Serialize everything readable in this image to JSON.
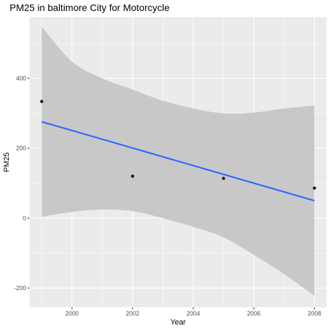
{
  "chart_data": {
    "type": "scatter",
    "title": "PM25 in baltimore City for Motorcycle",
    "xlabel": "Year",
    "ylabel": "PM25",
    "xlim": [
      1998.6,
      2008.4
    ],
    "ylim": [
      -255,
      575
    ],
    "x_ticks": [
      2000,
      2002,
      2004,
      2006,
      2008
    ],
    "y_ticks": [
      -200,
      0,
      200,
      400
    ],
    "grid": true,
    "legend": "none",
    "points": [
      {
        "x": 1999,
        "y": 334
      },
      {
        "x": 2002,
        "y": 120
      },
      {
        "x": 2005,
        "y": 114
      },
      {
        "x": 2008,
        "y": 86
      }
    ],
    "trend": {
      "method": "linear",
      "x": [
        1999,
        2008
      ],
      "y": [
        276,
        50
      ]
    },
    "confidence_band": {
      "x": [
        1999,
        2000,
        2001,
        2002,
        2003,
        2004,
        2005,
        2006,
        2007,
        2008
      ],
      "upper": [
        548,
        448,
        400,
        368,
        336,
        314,
        300,
        302,
        314,
        322
      ],
      "lower": [
        4,
        18,
        25,
        20,
        0,
        -25,
        -55,
        -105,
        -160,
        -222
      ]
    },
    "colors": {
      "panel_bg": "#ebebeb",
      "grid_major": "#ffffff",
      "band": "#c8c8c8",
      "line": "#3366ff",
      "point": "#000000"
    }
  }
}
